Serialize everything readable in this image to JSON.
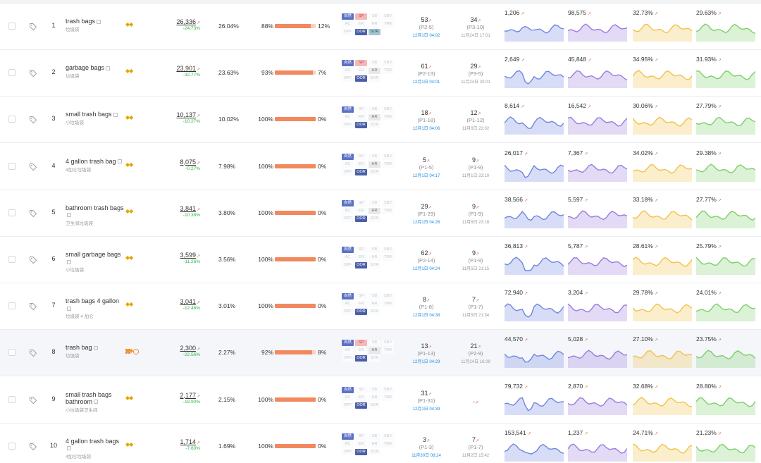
{
  "rows": [
    {
      "idx": "1",
      "kw": "trash bags",
      "zh": "垃圾袋",
      "vol": "26,336",
      "trend": "1.5",
      "chg": "-24.73%",
      "share": "26.04%",
      "left": "88%",
      "right": "12%",
      "pct": 0.88,
      "ads": [
        [
          "自然",
          "SP",
          "SB",
          "SBV"
        ],
        [
          "AC",
          "ER",
          "HR",
          "TRR"
        ],
        [
          "OPF",
          "OOR",
          "SOR"
        ]
      ],
      "adsOn": {
        "nat": 1,
        "sp": 1,
        "oor": 1,
        "sor": 1
      },
      "r1": "53",
      "r1r": "(P2-5)",
      "r1d": "12月1日 04:02",
      "r2": "34",
      "r2r": "(P3-10)",
      "r2d": "11月24日 17:01",
      "m": [
        "1,206",
        "98,575",
        "32.73%",
        "29.63%"
      ]
    },
    {
      "idx": "2",
      "kw": "garbage bags",
      "zh": "垃圾袋",
      "vol": "23,901",
      "trend": "1.5",
      "chg": "-32.77%",
      "share": "23.63%",
      "left": "93%",
      "right": "7%",
      "pct": 0.93,
      "ads": [
        [
          "自然",
          "SP",
          "SB",
          "SBV"
        ],
        [
          "AC",
          "ER",
          "HR",
          "TRR"
        ],
        [
          "OPF",
          "OOR",
          "SOR"
        ]
      ],
      "adsOn": {
        "nat": 1,
        "sp": 1,
        "hr": 1,
        "oor": 1
      },
      "r1": "61",
      "r1r": "(P2-13)",
      "r1d": "12月1日 04:01",
      "r2": "29",
      "r2r": "(P3-5)",
      "r2d": "11月24日 20:01",
      "m": [
        "2,649",
        "45,848",
        "34.95%",
        "31.93%"
      ]
    },
    {
      "idx": "3",
      "kw": "small trash bags",
      "zh": "小垃圾袋",
      "vol": "10,137",
      "trend": "1.5",
      "chg": "-10.27%",
      "share": "10.02%",
      "left": "100%",
      "right": "0%",
      "pct": 1.0,
      "ads": [
        [
          "自然",
          "SP",
          "SB",
          "SBV"
        ],
        [
          "AC",
          "ER",
          "HR",
          "TRR"
        ],
        [
          "OPF",
          "OOR",
          "SOR"
        ]
      ],
      "adsOn": {
        "nat": 1,
        "hr": 1,
        "oor": 1
      },
      "r1": "18",
      "r1r": "(P1-18)",
      "r1d": "12月1日 04:06",
      "r2": "12",
      "r2r": "(P1-12)",
      "r2d": "11月6日 22:02",
      "m": [
        "8,614",
        "16,542",
        "30.06%",
        "27.79%"
      ]
    },
    {
      "idx": "4",
      "kw": "4 gallon trash bag",
      "zh": "4加仑垃圾袋",
      "vol": "8,075",
      "trend": "1.5",
      "chg": "-0.27%",
      "share": "7.98%",
      "left": "100%",
      "right": "0%",
      "pct": 1.0,
      "ads": [
        [
          "自然",
          "SP",
          "SB",
          "SBV"
        ],
        [
          "AC",
          "ER",
          "HR",
          "TRR"
        ],
        [
          "OPF",
          "OOR",
          "SOR"
        ]
      ],
      "adsOn": {
        "nat": 1,
        "hr": 1,
        "oor": 1
      },
      "r1": "5",
      "r1r": "(P1-5)",
      "r1d": "12月1日 04:17",
      "r2": "9",
      "r2r": "(P1-9)",
      "r2d": "11月1日 23:10",
      "m": [
        "26,017",
        "7,367",
        "34.02%",
        "29.38%"
      ]
    },
    {
      "idx": "5",
      "kw": "bathroom trash bags",
      "zh": "卫生间垃圾袋",
      "vol": "3,841",
      "trend": "1.5",
      "chg": "-10.38%",
      "share": "3.80%",
      "left": "100%",
      "right": "0%",
      "pct": 1.0,
      "ads": [
        [
          "自然",
          "SP",
          "SB",
          "SBV"
        ],
        [
          "AC",
          "ER",
          "HR",
          "TRR"
        ],
        [
          "OPF",
          "OOR",
          "SOR"
        ]
      ],
      "adsOn": {
        "nat": 1,
        "hr": 1,
        "oor": 1
      },
      "r1": "29",
      "r1r": "(P1-29)",
      "r1d": "12月1日 04:26",
      "r2": "9",
      "r2r": "(P1-9)",
      "r2d": "11月6日 23:18",
      "m": [
        "38,566",
        "5,597",
        "33.18%",
        "27.77%"
      ]
    },
    {
      "idx": "6",
      "kw": "small garbage bags",
      "zh": "小垃圾袋",
      "vol": "3,599",
      "trend": "1.5",
      "chg": "-11.26%",
      "share": "3.56%",
      "left": "100%",
      "right": "0%",
      "pct": 1.0,
      "ads": [
        [
          "自然",
          "SP",
          "SB",
          "SBV"
        ],
        [
          "AC",
          "ER",
          "HR",
          "TRR"
        ],
        [
          "OPF",
          "OOR",
          "SOR"
        ]
      ],
      "adsOn": {
        "nat": 1,
        "oor": 1
      },
      "r1": "62",
      "r1r": "(P2-14)",
      "r1d": "12月1日 04:24",
      "r2": "9",
      "r2r": "(P1-9)",
      "r2d": "11月5日 21:15",
      "m": [
        "36,813",
        "5,787",
        "28.61%",
        "25.79%"
      ]
    },
    {
      "idx": "7",
      "kw": "trash bags 4 gallon",
      "zh": "垃圾袋 4 加仑",
      "vol": "3,041",
      "trend": "1.5",
      "chg": "-12.46%",
      "share": "3.01%",
      "left": "100%",
      "right": "0%",
      "pct": 1.0,
      "ads": [
        [
          "自然",
          "SP",
          "SB",
          "SBV"
        ],
        [
          "AC",
          "ER",
          "HR",
          "TRR"
        ],
        [
          "OPF",
          "OOR",
          "SOR"
        ]
      ],
      "adsOn": {
        "nat": 1,
        "oor": 1
      },
      "r1": "8",
      "r1r": "(P1-8)",
      "r1d": "12月1日 04:38",
      "r2": "7",
      "r2r": "(P1-7)",
      "r2d": "11月5日 21:34",
      "m": [
        "72,940",
        "3,204",
        "29.78%",
        "24.01%"
      ]
    },
    {
      "idx": "8",
      "kw": "trash bag",
      "zh": "垃圾袋",
      "vol": "2,300",
      "trend": "1.5",
      "chg": "-22.56%",
      "share": "2.27%",
      "left": "92%",
      "right": "8%",
      "pct": 0.92,
      "ads": [
        [
          "自然",
          "SP",
          "SB",
          "SBV"
        ],
        [
          "AC",
          "ER",
          "HR",
          "TRR"
        ],
        [
          "OPF",
          "OOR",
          "SOR"
        ]
      ],
      "adsOn": {
        "nat": 1,
        "sp": 1,
        "hr": 1,
        "oor": 1
      },
      "r1": "13",
      "r1r": "(P1-13)",
      "r1d": "12月1日 04:29",
      "r2": "21",
      "r2r": "(P2-9)",
      "r2d": "11月24日 16:29",
      "m": [
        "44,570",
        "5,028",
        "27.10%",
        "23.75%"
      ]
    },
    {
      "idx": "9",
      "kw": "small trash bags bathroom",
      "zh": "小垃圾袋卫生间",
      "vol": "2,177",
      "trend": "1.5",
      "chg": "-19.90%",
      "share": "2.15%",
      "left": "100%",
      "right": "0%",
      "pct": 1.0,
      "ads": [
        [
          "自然",
          "SP",
          "SB",
          "SBV"
        ],
        [
          "AC",
          "ER",
          "HR",
          "TRR"
        ],
        [
          "OPF",
          "OOR",
          "SOR"
        ]
      ],
      "adsOn": {
        "nat": 1,
        "oor": 1
      },
      "r1": "31",
      "r1r": "(P1-31)",
      "r1d": "12月1日 04:39",
      "r2": "-",
      "r2r": "",
      "r2d": "",
      "m": [
        "79,732",
        "2,870",
        "32.68%",
        "28.80%"
      ]
    },
    {
      "idx": "10",
      "kw": "4 gallon trash bags",
      "zh": "4加仑垃圾袋",
      "vol": "1,714",
      "trend": "1.5",
      "chg": "-7.60%",
      "share": "1.69%",
      "left": "100%",
      "right": "0%",
      "pct": 1.0,
      "ads": [
        [
          "自然",
          "SP",
          "SB",
          "SBV"
        ],
        [
          "AC",
          "ER",
          "HR",
          "TRR"
        ],
        [
          "OPF",
          "OOR",
          "SOR"
        ]
      ],
      "adsOn": {
        "nat": 1,
        "oor": 1
      },
      "r1": "3",
      "r1r": "(P1-3)",
      "r1d": "11月30日 08:24",
      "r2": "7",
      "r2r": "(P1-7)",
      "r2d": "11月2日 15:42",
      "m": [
        "153,541",
        "1,237",
        "24.71%",
        "21.23%"
      ]
    }
  ],
  "colors": {
    "blue": "#6f86e0",
    "purple": "#9a7be0",
    "yellow": "#f2c24a",
    "green": "#7ccf6a",
    "trendIcon": "#e06a3a"
  },
  "icons": {
    "tag": "tag-icon",
    "trend": "trend-arrow-icon",
    "copy": "copy-icon",
    "brand": "brand-badge-icon",
    "grid": "grid-icon",
    "alert": "alert-circle-icon"
  }
}
